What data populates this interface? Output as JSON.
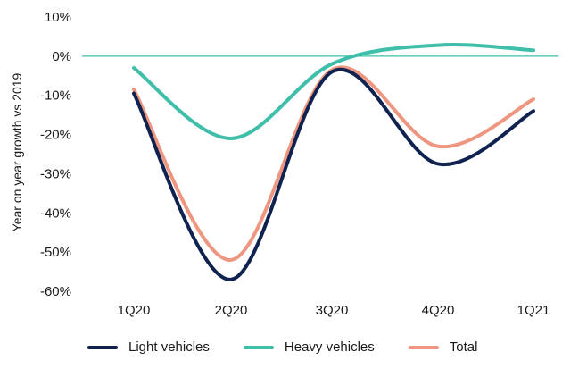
{
  "chart_data": {
    "type": "line",
    "categories": [
      "1Q20",
      "2Q20",
      "3Q20",
      "4Q20",
      "1Q21"
    ],
    "ylabel": "Year on year growth vs 2019",
    "ylim": [
      -60,
      10
    ],
    "yticks": [
      10,
      0,
      -10,
      -20,
      -30,
      -40,
      -50,
      -60
    ],
    "ytick_labels": [
      "10%",
      "0%",
      "-10%",
      "-20%",
      "-30%",
      "-40%",
      "-50%",
      "-60%"
    ],
    "zero_line": true,
    "legend_position": "bottom",
    "series": [
      {
        "name": "Light vehicles",
        "color": "#0f2250",
        "values": [
          -9.5,
          -57.0,
          -4.0,
          -27.5,
          -14.0
        ]
      },
      {
        "name": "Heavy vehicles",
        "color": "#3fbfa9",
        "values": [
          -3.0,
          -21.0,
          -2.0,
          2.8,
          1.5
        ]
      },
      {
        "name": "Total",
        "color": "#ee9680",
        "values": [
          -8.5,
          -52.0,
          -3.5,
          -23.0,
          -11.0
        ]
      }
    ]
  }
}
